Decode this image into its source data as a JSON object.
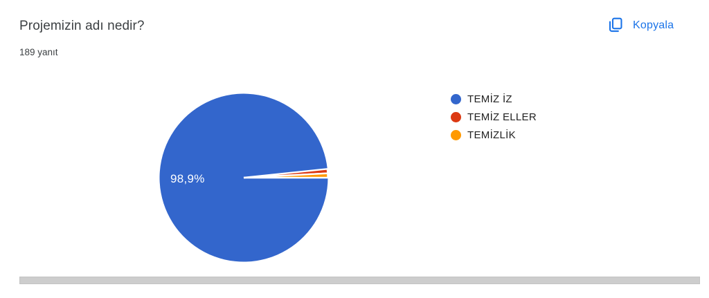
{
  "header": {
    "title": "Projemizin adı nedir?",
    "response_count": "189 yanıt"
  },
  "toolbar": {
    "copy_label": "Kopyala",
    "copy_icon": "copy-icon",
    "accent_color": "#1a73e8"
  },
  "chart_data": {
    "type": "pie",
    "title": "Projemizin adı nedir?",
    "total_responses": 189,
    "categories": [
      "TEMİZ İZ",
      "TEMİZ ELLER",
      "TEMİZLİK"
    ],
    "values": [
      98.9,
      0.55,
      0.55
    ],
    "unit": "percent",
    "colors": [
      "#3366cc",
      "#dc3912",
      "#ff9900"
    ],
    "slice_label": "98,9%",
    "legend_position": "right",
    "start_angle_deg": 0,
    "slice_border_color": "#ffffff"
  },
  "legend": {
    "items": [
      {
        "label": "TEMİZ İZ",
        "color": "#3366cc"
      },
      {
        "label": "TEMİZ ELLER",
        "color": "#dc3912"
      },
      {
        "label": "TEMİZLİK",
        "color": "#ff9900"
      }
    ]
  },
  "scrollbar": {
    "orientation": "horizontal"
  }
}
